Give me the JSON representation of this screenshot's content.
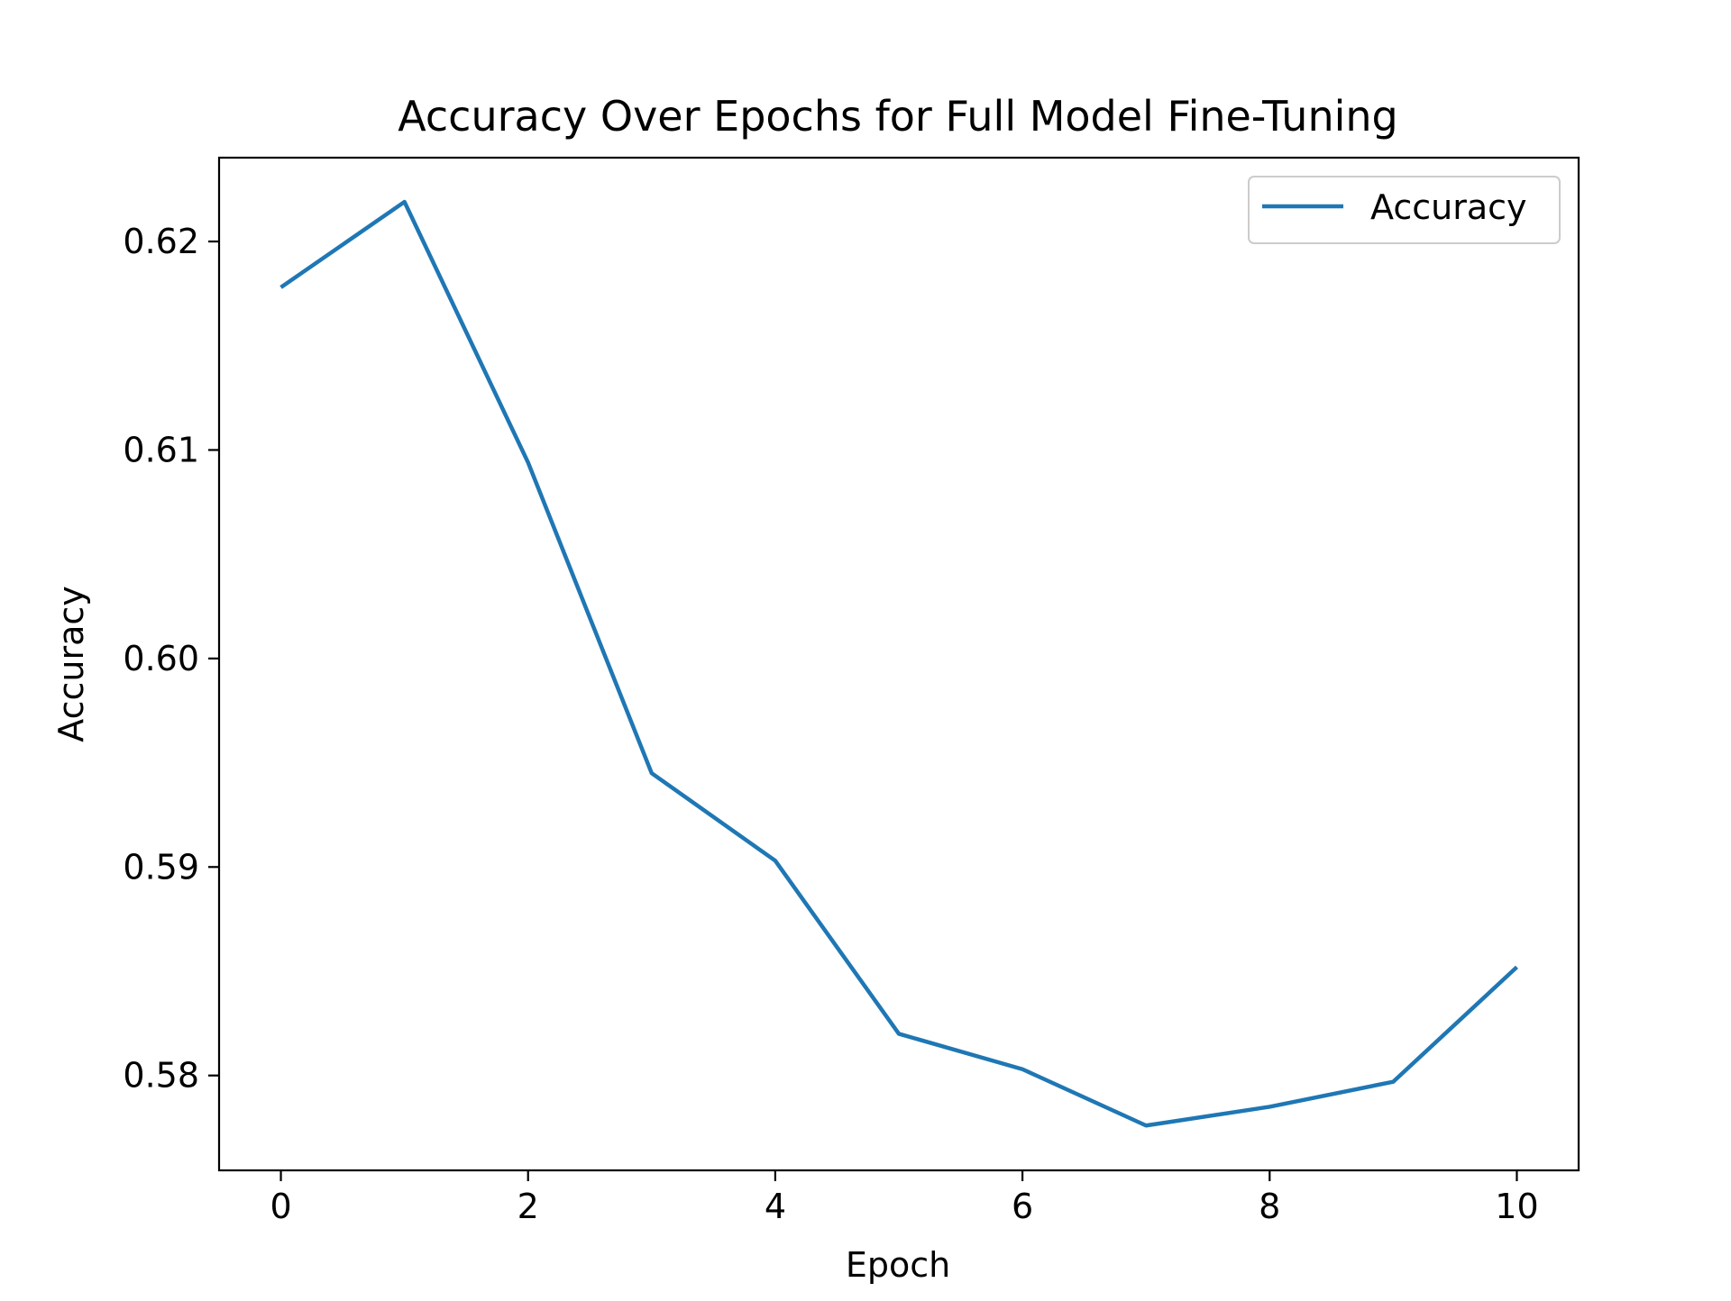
{
  "chart_data": {
    "type": "line",
    "title": "Accuracy Over Epochs for Full Model Fine-Tuning",
    "xlabel": "Epoch",
    "ylabel": "Accuracy",
    "x": [
      0,
      1,
      2,
      3,
      4,
      5,
      6,
      7,
      8,
      9,
      10
    ],
    "series": [
      {
        "name": "Accuracy",
        "color": "#1f77b4",
        "values": [
          0.6178,
          0.6219,
          0.6094,
          0.5945,
          0.5903,
          0.582,
          0.5803,
          0.5776,
          0.5785,
          0.5797,
          0.5852
        ]
      }
    ],
    "xlim": [
      -0.5,
      10.5
    ],
    "ylim": [
      0.57545,
      0.62402
    ],
    "xticks": [
      0,
      2,
      4,
      6,
      8,
      10
    ],
    "xtick_labels": [
      "0",
      "2",
      "4",
      "6",
      "8",
      "10"
    ],
    "yticks": [
      0.58,
      0.59,
      0.6,
      0.61,
      0.62
    ],
    "ytick_labels": [
      "0.58",
      "0.59",
      "0.60",
      "0.61",
      "0.62"
    ],
    "grid": false,
    "legend_position": "top-right"
  }
}
